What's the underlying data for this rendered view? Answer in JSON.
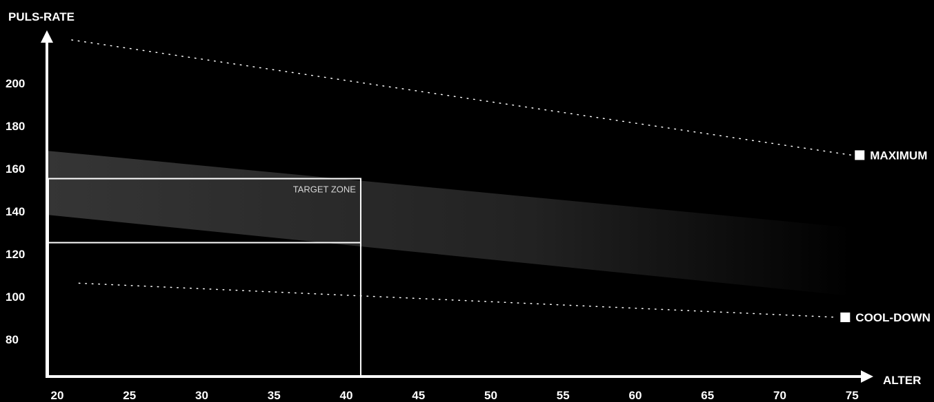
{
  "chart_data": {
    "type": "line",
    "ylabel": "PULS-RATE",
    "xlabel": "ALTER",
    "x_ticks": [
      "20",
      "25",
      "30",
      "35",
      "40",
      "45",
      "50",
      "55",
      "60",
      "65",
      "70",
      "75"
    ],
    "y_ticks": [
      "200",
      "180",
      "160",
      "140",
      "120",
      "100",
      "80"
    ],
    "xlim": [
      20,
      75
    ],
    "series": [
      {
        "name": "MAXIMUM",
        "style": "dotted",
        "x": [
          21,
          75
        ],
        "y": [
          220,
          166
        ]
      },
      {
        "name": "COOL-DOWN",
        "style": "dotted",
        "x": [
          21.5,
          74
        ],
        "y": [
          106,
          90
        ]
      }
    ],
    "band": {
      "x": [
        20,
        75
      ],
      "upper": [
        168,
        132
      ],
      "lower": [
        138,
        100
      ]
    },
    "target_zone": {
      "label": "TARGET ZONE",
      "x": [
        20,
        41
      ],
      "y": [
        125,
        155
      ]
    },
    "line_color": "#ffffff",
    "band_color": "#2a2a2a"
  }
}
